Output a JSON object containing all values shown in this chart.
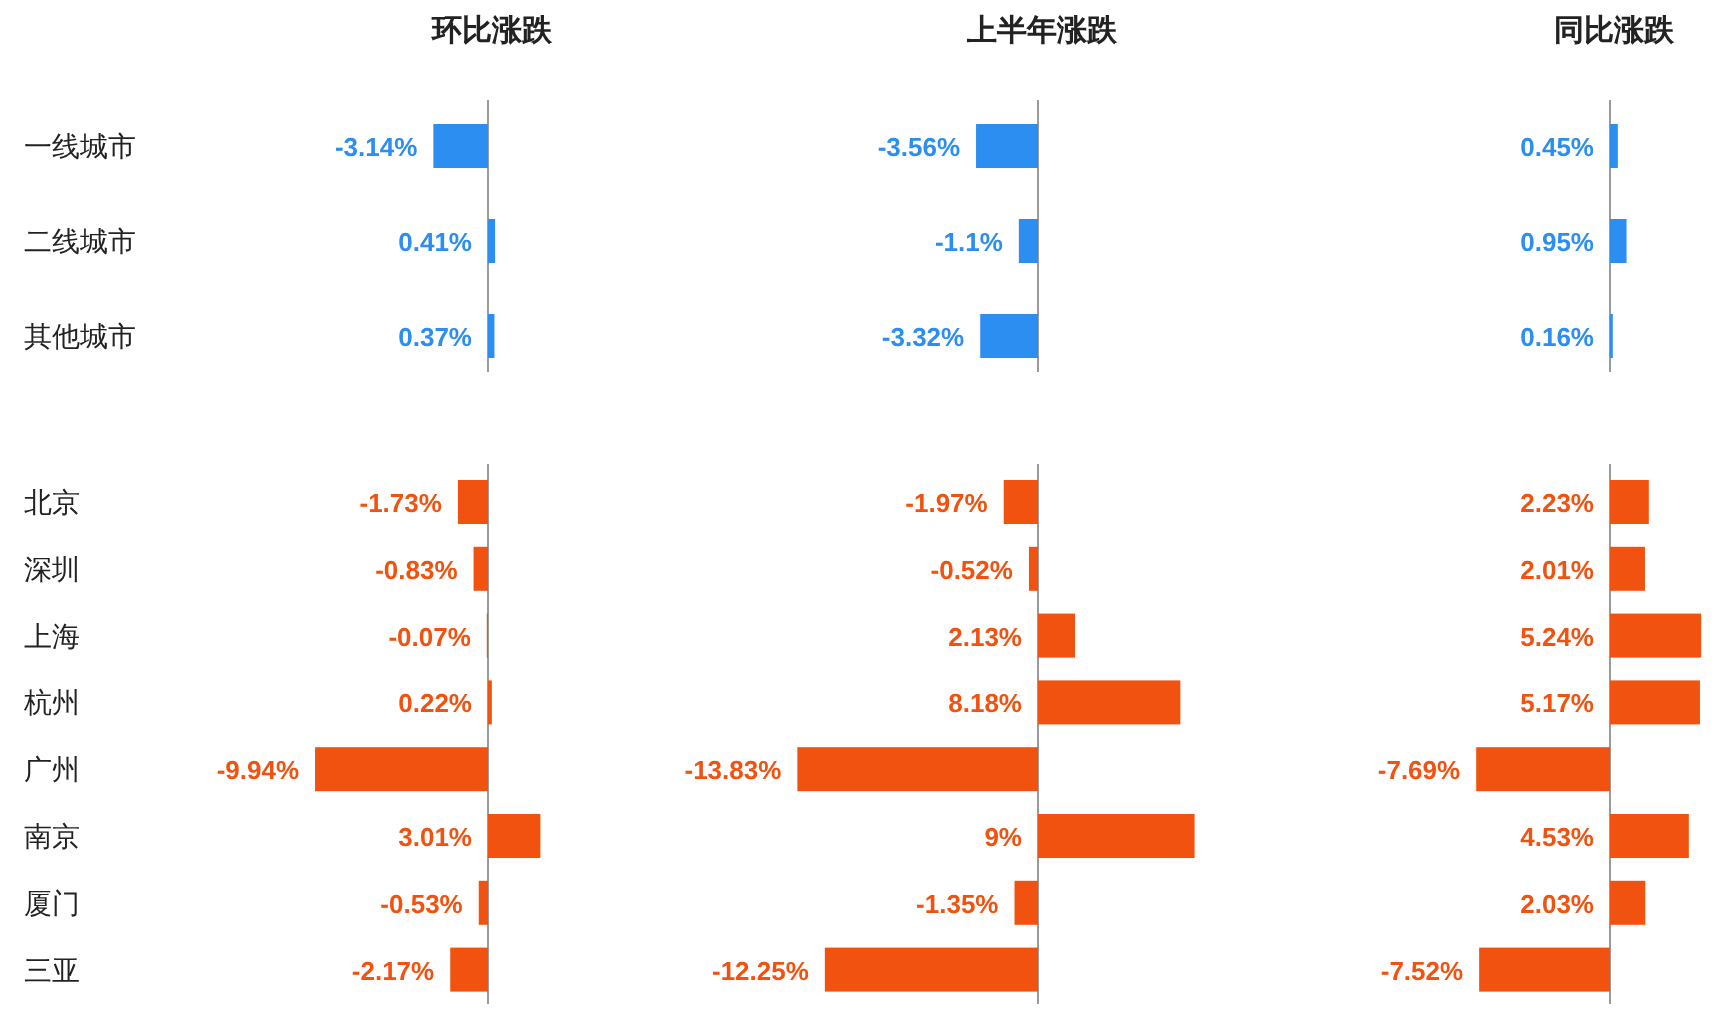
{
  "chart_data": [
    {
      "type": "bar",
      "orientation": "horizontal",
      "title": "环比涨跌",
      "tick_labels": "y",
      "color": "#2b8ef0",
      "categories": [
        "一线城市",
        "二线城市",
        "其他城市"
      ],
      "values": [
        -3.14,
        0.41,
        0.37
      ],
      "value_labels": [
        "-3.14%",
        "0.41%",
        "0.37%"
      ]
    },
    {
      "type": "bar",
      "orientation": "horizontal",
      "title": "上半年涨跌",
      "tick_labels": false,
      "color": "#2b8ef0",
      "categories": [
        null,
        null,
        null
      ],
      "values": [
        -3.56,
        -1.1,
        -3.32
      ],
      "value_labels": [
        "-3.56%",
        "-1.1%",
        "-3.32%"
      ]
    },
    {
      "type": "bar",
      "orientation": "horizontal",
      "title": "同比涨跌",
      "tick_labels": false,
      "color": "#2b8ef0",
      "categories": [
        null,
        null,
        null
      ],
      "values": [
        0.45,
        0.95,
        0.16
      ],
      "value_labels": [
        "0.45%",
        "0.95%",
        "0.16%"
      ]
    },
    {
      "type": "bar",
      "orientation": "horizontal",
      "tick_labels": "y",
      "color": "#f2520f",
      "categories": [
        "北京",
        "深圳",
        "上海",
        "杭州",
        "广州",
        "南京",
        "厦门",
        "三亚"
      ],
      "values": [
        -1.73,
        -0.83,
        -0.07,
        0.22,
        -9.94,
        3.01,
        -0.53,
        -2.17
      ],
      "value_labels": [
        "-1.73%",
        "-0.83%",
        "-0.07%",
        "0.22%",
        "-9.94%",
        "3.01%",
        "-0.53%",
        "-2.17%"
      ]
    },
    {
      "type": "bar",
      "orientation": "horizontal",
      "tick_labels": false,
      "color": "#f2520f",
      "categories": [
        null,
        null,
        null,
        null,
        null,
        null,
        null,
        null
      ],
      "values": [
        -1.97,
        -0.52,
        2.13,
        8.18,
        -13.83,
        9,
        -1.35,
        -12.25
      ],
      "value_labels": [
        "-1.97%",
        "-0.52%",
        "2.13%",
        "8.18%",
        "-13.83%",
        "9%",
        "-1.35%",
        "-12.25%"
      ]
    },
    {
      "type": "bar",
      "orientation": "horizontal",
      "tick_labels": false,
      "color": "#f2520f",
      "categories": [
        null,
        null,
        null,
        null,
        null,
        null,
        null,
        null
      ],
      "values": [
        2.23,
        2.01,
        5.24,
        5.17,
        -7.69,
        4.53,
        2.03,
        -7.52
      ],
      "value_labels": [
        "2.23%",
        "2.01%",
        "5.24%",
        "5.17%",
        "-7.69%",
        "4.53%",
        "2.03%",
        "-7.52%"
      ]
    }
  ]
}
